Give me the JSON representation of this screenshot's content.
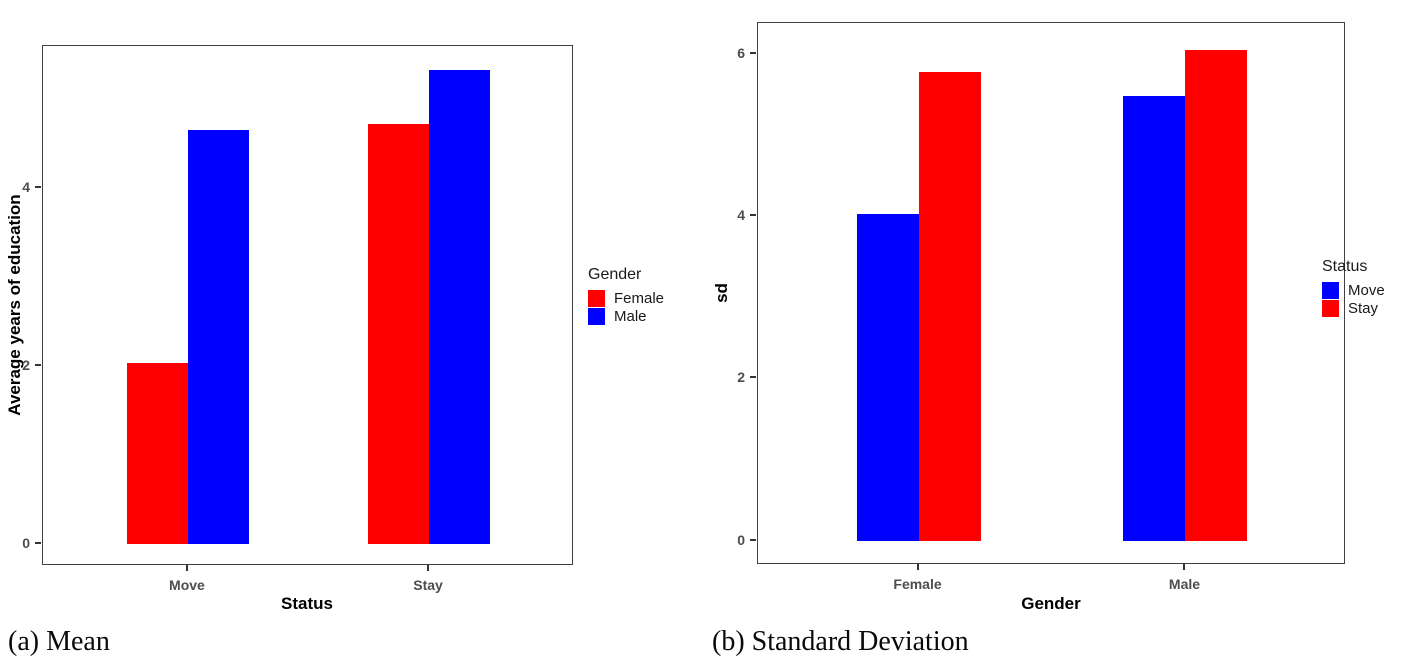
{
  "colors": {
    "female_red": "#ff0000",
    "male_blue": "#0000ff",
    "axis_tick_text": "#4d4d4d",
    "axis_title_text": "#000000",
    "panel_border": "#404040",
    "background": "#ffffff"
  },
  "chart_data": [
    {
      "type": "bar",
      "caption": "(a) Mean",
      "title": "",
      "xlabel": "Status",
      "ylabel": "Average years of education",
      "categories": [
        "Move",
        "Stay"
      ],
      "series": [
        {
          "name": "Female",
          "color": "#ff0000",
          "values": [
            2.03,
            4.72
          ]
        },
        {
          "name": "Male",
          "color": "#0000ff",
          "values": [
            4.65,
            5.33
          ]
        }
      ],
      "yticks": [
        0,
        2,
        4
      ],
      "ylim": [
        -0.25,
        5.6
      ],
      "legend_title": "Gender",
      "legend_position": "right",
      "grid": false
    },
    {
      "type": "bar",
      "caption": "(b) Standard Deviation",
      "title": "",
      "xlabel": "Gender",
      "ylabel": "sd",
      "categories": [
        "Female",
        "Male"
      ],
      "series": [
        {
          "name": "Move",
          "color": "#0000ff",
          "values": [
            4.03,
            5.48
          ]
        },
        {
          "name": "Stay",
          "color": "#ff0000",
          "values": [
            5.77,
            6.05
          ]
        }
      ],
      "yticks": [
        0,
        2,
        4,
        6
      ],
      "ylim": [
        -0.3,
        6.38
      ],
      "legend_title": "Status",
      "legend_position": "right",
      "grid": false
    }
  ]
}
